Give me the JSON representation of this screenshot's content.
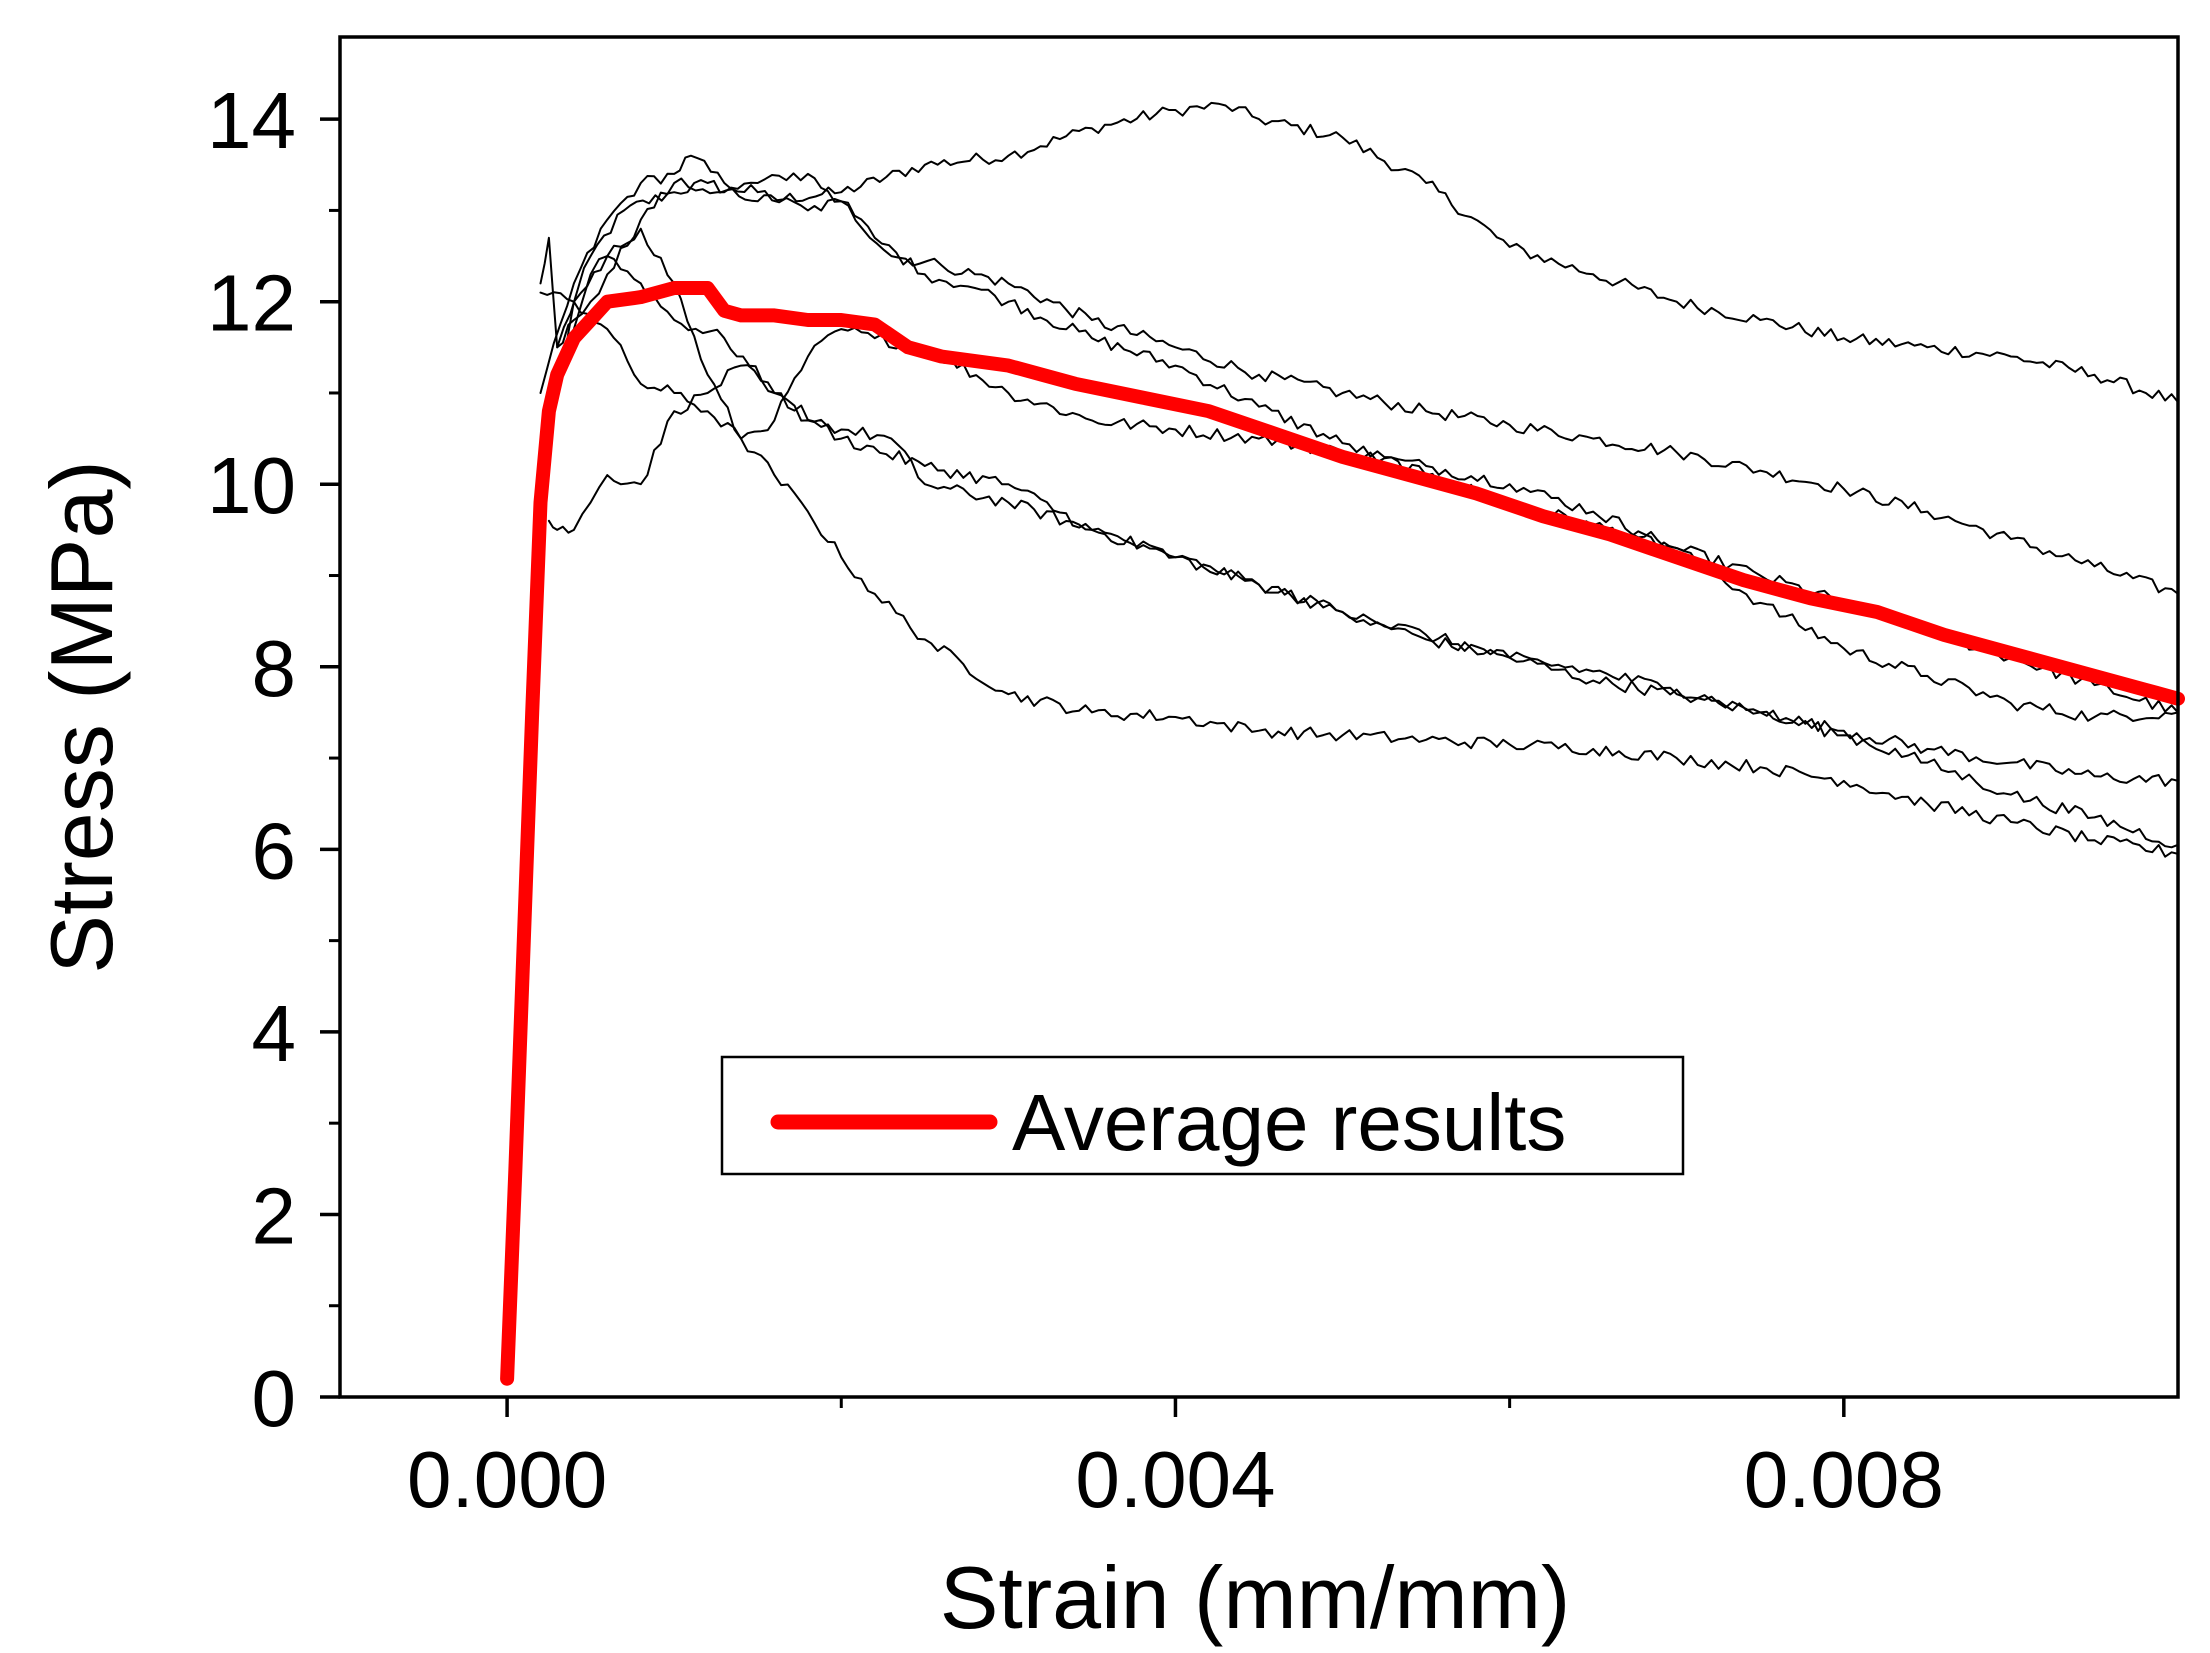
{
  "chart_data": {
    "type": "line",
    "xlabel": "Strain (mm/mm)",
    "ylabel": "Stress (MPa)",
    "xlim": [
      -0.001,
      0.01
    ],
    "ylim": [
      0,
      14.9
    ],
    "x_ticks": [
      0.0,
      0.004,
      0.008
    ],
    "x_tick_labels": [
      "0.000",
      "0.004",
      "0.008"
    ],
    "x_minor_ticks": [
      0.002,
      0.006
    ],
    "y_ticks": [
      0,
      2,
      4,
      6,
      8,
      10,
      12,
      14
    ],
    "y_tick_labels": [
      "0",
      "2",
      "4",
      "6",
      "8",
      "10",
      "12",
      "14"
    ],
    "y_minor_ticks": [
      1,
      3,
      5,
      7,
      9,
      11,
      13
    ],
    "grid": false,
    "legend": {
      "position": "center",
      "entries": [
        "Average results"
      ]
    },
    "colors": {
      "average": "#ff0000",
      "specimen": "#000000"
    },
    "series": [
      {
        "name": "Average results",
        "color": "#ff0000",
        "x": [
          0.0,
          5e-05,
          0.0001,
          0.00015,
          0.0002,
          0.00025,
          0.0003,
          0.0004,
          0.0005,
          0.0006,
          0.0008,
          0.001,
          0.0012,
          0.0013,
          0.0014,
          0.0016,
          0.0018,
          0.002,
          0.0022,
          0.0024,
          0.0026,
          0.003,
          0.0034,
          0.0038,
          0.0042,
          0.0046,
          0.005,
          0.0054,
          0.0058,
          0.0062,
          0.0066,
          0.007,
          0.0074,
          0.0078,
          0.0082,
          0.0086,
          0.009,
          0.0094,
          0.0098,
          0.01
        ],
        "y": [
          0.2,
          2.5,
          5.0,
          7.5,
          9.8,
          10.8,
          11.2,
          11.6,
          11.8,
          12.0,
          12.05,
          12.15,
          12.15,
          11.9,
          11.85,
          11.85,
          11.8,
          11.8,
          11.75,
          11.5,
          11.4,
          11.3,
          11.1,
          10.95,
          10.8,
          10.55,
          10.3,
          10.1,
          9.9,
          9.65,
          9.45,
          9.2,
          8.95,
          8.75,
          8.6,
          8.35,
          8.15,
          7.95,
          7.75,
          7.65
        ]
      },
      {
        "x": [
          0.0003,
          0.0005,
          0.0007,
          0.001,
          0.0012,
          0.0015,
          0.002,
          0.0025,
          0.003,
          0.0035,
          0.004,
          0.0043,
          0.0045,
          0.005,
          0.0055,
          0.006,
          0.0065,
          0.007,
          0.0075,
          0.008,
          0.0085,
          0.009,
          0.0095,
          0.01
        ],
        "y": [
          11.5,
          12.5,
          13.0,
          13.2,
          13.3,
          13.1,
          13.2,
          13.5,
          13.6,
          13.9,
          14.1,
          14.15,
          14.0,
          13.8,
          13.3,
          12.6,
          12.3,
          12.0,
          11.8,
          11.6,
          11.5,
          11.4,
          11.2,
          10.9
        ]
      },
      {
        "x": [
          0.0002,
          0.0004,
          0.0006,
          0.0008,
          0.001,
          0.0011,
          0.0013,
          0.0015,
          0.0018,
          0.002,
          0.0023,
          0.0026,
          0.003,
          0.0035,
          0.004,
          0.0045,
          0.005,
          0.0055,
          0.006,
          0.0065,
          0.007,
          0.0075,
          0.008,
          0.0085,
          0.009,
          0.0095,
          0.01
        ],
        "y": [
          11.0,
          12.2,
          12.9,
          13.3,
          13.4,
          13.6,
          13.3,
          13.2,
          13.0,
          13.1,
          12.5,
          12.4,
          12.2,
          11.8,
          11.5,
          11.2,
          11.0,
          10.8,
          10.65,
          10.5,
          10.35,
          10.15,
          9.95,
          9.7,
          9.4,
          9.1,
          8.8
        ]
      },
      {
        "x": [
          0.0002,
          0.00025,
          0.0003,
          0.0004,
          0.0005,
          0.0006,
          0.0008,
          0.001,
          0.0013,
          0.0015,
          0.0018,
          0.002,
          0.0022,
          0.0025,
          0.0028,
          0.003,
          0.0035,
          0.004,
          0.0045,
          0.005,
          0.0055,
          0.006,
          0.0065,
          0.007,
          0.0075,
          0.008,
          0.0085,
          0.009,
          0.0095,
          0.01
        ],
        "y": [
          12.2,
          12.7,
          11.5,
          11.8,
          12.0,
          12.3,
          12.9,
          13.3,
          13.2,
          13.3,
          13.4,
          13.1,
          12.7,
          12.3,
          12.15,
          12.0,
          11.6,
          11.3,
          10.85,
          10.45,
          10.1,
          9.8,
          9.55,
          9.3,
          9.0,
          8.7,
          8.4,
          8.1,
          7.8,
          7.5
        ]
      },
      {
        "x": [
          0.0002,
          0.0003,
          0.0004,
          0.0005,
          0.0006,
          0.0008,
          0.001,
          0.0012,
          0.0014,
          0.0016,
          0.0018,
          0.002,
          0.0022,
          0.0025,
          0.003,
          0.0035,
          0.004,
          0.0045,
          0.005,
          0.0055,
          0.006,
          0.0065,
          0.007,
          0.0075,
          0.008,
          0.0085,
          0.009,
          0.0095,
          0.01
        ],
        "y": [
          10.5,
          11.3,
          11.7,
          12.3,
          12.5,
          12.8,
          12.2,
          11.2,
          10.5,
          10.7,
          11.4,
          11.7,
          11.6,
          11.5,
          11.0,
          10.7,
          10.6,
          10.5,
          10.35,
          10.2,
          10.0,
          9.7,
          9.3,
          8.7,
          8.2,
          7.9,
          7.6,
          7.45,
          7.5
        ]
      },
      {
        "x": [
          0.00025,
          0.0003,
          0.0004,
          0.0005,
          0.0006,
          0.0008,
          0.001,
          0.0012,
          0.0014,
          0.0016,
          0.0018,
          0.002,
          0.0023,
          0.0025,
          0.003,
          0.0035,
          0.004,
          0.0045,
          0.005,
          0.0055,
          0.006,
          0.0065,
          0.007,
          0.0075,
          0.008,
          0.0085,
          0.009,
          0.0095,
          0.01
        ],
        "y": [
          9.6,
          9.5,
          9.5,
          9.8,
          10.1,
          10.0,
          10.8,
          11.0,
          11.3,
          11.0,
          10.7,
          10.6,
          10.5,
          10.0,
          9.8,
          9.5,
          9.2,
          8.9,
          8.6,
          8.3,
          8.1,
          7.85,
          7.7,
          7.5,
          7.3,
          7.1,
          6.95,
          6.8,
          6.75
        ]
      },
      {
        "x": [
          0.0002,
          0.0004,
          0.0006,
          0.0008,
          0.001,
          0.0012,
          0.0014,
          0.0016,
          0.0018,
          0.002,
          0.0022,
          0.0025,
          0.003,
          0.0035,
          0.004,
          0.0045,
          0.005,
          0.0055,
          0.006,
          0.0065,
          0.007,
          0.0075,
          0.008,
          0.0085,
          0.009,
          0.0095,
          0.01
        ],
        "y": [
          12.1,
          12.0,
          11.7,
          11.1,
          11.0,
          10.8,
          10.5,
          10.1,
          9.7,
          9.2,
          8.8,
          8.3,
          7.7,
          7.5,
          7.45,
          7.3,
          7.25,
          7.2,
          7.15,
          7.1,
          7.0,
          6.9,
          6.75,
          6.5,
          6.3,
          6.1,
          5.95
        ]
      },
      {
        "x": [
          0.0003,
          0.0004,
          0.0006,
          0.0008,
          0.001,
          0.0013,
          0.0016,
          0.002,
          0.0025,
          0.003,
          0.0035,
          0.004,
          0.0045,
          0.005,
          0.0055,
          0.006,
          0.0065,
          0.007,
          0.0075,
          0.008,
          0.0085,
          0.009,
          0.0095,
          0.01
        ],
        "y": [
          11.0,
          12.0,
          12.5,
          12.2,
          11.8,
          11.6,
          11.0,
          10.5,
          10.2,
          10.0,
          9.5,
          9.2,
          8.9,
          8.6,
          8.35,
          8.1,
          7.95,
          7.75,
          7.5,
          7.25,
          6.95,
          6.6,
          6.35,
          6.05
        ]
      }
    ]
  }
}
